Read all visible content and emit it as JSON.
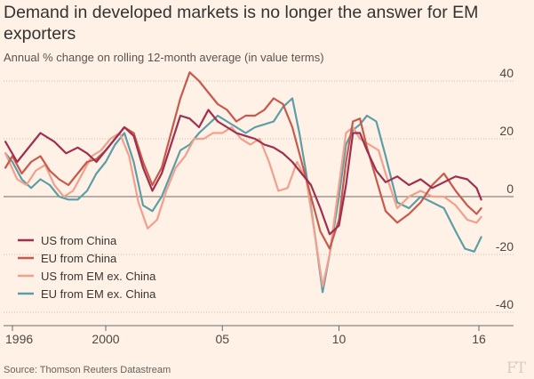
{
  "title": "Demand in developed markets is no longer the answer for EM exporters",
  "subtitle": "Annual % change on rolling 12-month average (in value terms)",
  "source": "Source: Thomson Reuters Datastream",
  "logo_text": "FT",
  "chart_data": {
    "type": "line",
    "ylim": [
      -40,
      40
    ],
    "xlim": [
      1995.6,
      2016.3
    ],
    "grid": true,
    "legend_position": "bottom-left",
    "y_ticks": [
      {
        "value": 40,
        "label": "40"
      },
      {
        "value": 20,
        "label": "20"
      },
      {
        "value": 0,
        "label": "0"
      },
      {
        "value": -20,
        "label": "-20"
      },
      {
        "value": -40,
        "label": "-40"
      }
    ],
    "x_ticks": [
      {
        "value": 1996,
        "label": "1996"
      },
      {
        "value": 2000,
        "label": "2000"
      },
      {
        "value": 2005,
        "label": "05"
      },
      {
        "value": 2010,
        "label": "10"
      },
      {
        "value": 2016,
        "label": "16"
      }
    ],
    "series": [
      {
        "name": "US from China",
        "color": "#9e2f50",
        "points": [
          [
            1995.7,
            19
          ],
          [
            1996.2,
            12
          ],
          [
            1996.8,
            18
          ],
          [
            1997.2,
            22
          ],
          [
            1997.8,
            19
          ],
          [
            1998.3,
            15
          ],
          [
            1998.8,
            17
          ],
          [
            1999.2,
            15
          ],
          [
            1999.6,
            12
          ],
          [
            2000.0,
            16
          ],
          [
            2000.4,
            20
          ],
          [
            2000.8,
            24
          ],
          [
            2001.2,
            21
          ],
          [
            2001.6,
            10
          ],
          [
            2002.0,
            2
          ],
          [
            2002.4,
            8
          ],
          [
            2002.8,
            18
          ],
          [
            2003.2,
            28
          ],
          [
            2003.6,
            27
          ],
          [
            2004.0,
            24
          ],
          [
            2004.4,
            30
          ],
          [
            2004.8,
            26
          ],
          [
            2005.2,
            24
          ],
          [
            2005.6,
            22
          ],
          [
            2006.0,
            21
          ],
          [
            2006.4,
            20
          ],
          [
            2006.8,
            18
          ],
          [
            2007.2,
            17
          ],
          [
            2007.6,
            15
          ],
          [
            2008.0,
            12
          ],
          [
            2008.4,
            8
          ],
          [
            2008.8,
            4
          ],
          [
            2009.2,
            -4
          ],
          [
            2009.6,
            -13
          ],
          [
            2010.0,
            -10
          ],
          [
            2010.3,
            4
          ],
          [
            2010.6,
            22
          ],
          [
            2010.9,
            22
          ],
          [
            2011.2,
            16
          ],
          [
            2011.6,
            9
          ],
          [
            2012.0,
            5
          ],
          [
            2012.5,
            7
          ],
          [
            2013.0,
            4
          ],
          [
            2013.5,
            6
          ],
          [
            2014.0,
            3
          ],
          [
            2014.5,
            5
          ],
          [
            2015.0,
            7
          ],
          [
            2015.5,
            6
          ],
          [
            2015.9,
            3
          ],
          [
            2016.1,
            -1
          ]
        ]
      },
      {
        "name": "EU from China",
        "color": "#c7594c",
        "points": [
          [
            1995.7,
            10
          ],
          [
            1996.0,
            14
          ],
          [
            1996.4,
            8
          ],
          [
            1996.8,
            12
          ],
          [
            1997.2,
            14
          ],
          [
            1997.6,
            9
          ],
          [
            1998.0,
            6
          ],
          [
            1998.4,
            4
          ],
          [
            1998.8,
            8
          ],
          [
            1999.2,
            12
          ],
          [
            1999.6,
            13
          ],
          [
            2000.0,
            16
          ],
          [
            2000.4,
            20
          ],
          [
            2000.8,
            24
          ],
          [
            2001.2,
            22
          ],
          [
            2001.6,
            12
          ],
          [
            2002.0,
            4
          ],
          [
            2002.4,
            10
          ],
          [
            2002.8,
            22
          ],
          [
            2003.2,
            34
          ],
          [
            2003.6,
            43
          ],
          [
            2004.0,
            40
          ],
          [
            2004.4,
            36
          ],
          [
            2004.8,
            32
          ],
          [
            2005.2,
            30
          ],
          [
            2005.6,
            26
          ],
          [
            2006.0,
            28
          ],
          [
            2006.4,
            28
          ],
          [
            2006.8,
            30
          ],
          [
            2007.2,
            34
          ],
          [
            2007.6,
            32
          ],
          [
            2008.0,
            24
          ],
          [
            2008.4,
            12
          ],
          [
            2008.8,
            0
          ],
          [
            2009.2,
            -12
          ],
          [
            2009.6,
            -18
          ],
          [
            2010.0,
            -8
          ],
          [
            2010.3,
            12
          ],
          [
            2010.6,
            26
          ],
          [
            2010.9,
            27
          ],
          [
            2011.2,
            17
          ],
          [
            2011.6,
            6
          ],
          [
            2012.0,
            -5
          ],
          [
            2012.5,
            -9
          ],
          [
            2013.0,
            -6
          ],
          [
            2013.5,
            -2
          ],
          [
            2014.0,
            4
          ],
          [
            2014.5,
            8
          ],
          [
            2015.0,
            2
          ],
          [
            2015.5,
            -3
          ],
          [
            2015.9,
            -6
          ],
          [
            2016.1,
            -4
          ]
        ]
      },
      {
        "name": "US from EM ex. China",
        "color": "#f2a08e",
        "points": [
          [
            1995.7,
            15
          ],
          [
            1996.2,
            6
          ],
          [
            1996.6,
            4
          ],
          [
            1997.0,
            9
          ],
          [
            1997.4,
            11
          ],
          [
            1997.8,
            4
          ],
          [
            1998.2,
            0
          ],
          [
            1998.6,
            2
          ],
          [
            1999.0,
            8
          ],
          [
            1999.4,
            14
          ],
          [
            1999.8,
            16
          ],
          [
            2000.2,
            20
          ],
          [
            2000.6,
            22
          ],
          [
            2001.0,
            14
          ],
          [
            2001.4,
            -2
          ],
          [
            2001.8,
            -11
          ],
          [
            2002.2,
            -8
          ],
          [
            2002.6,
            2
          ],
          [
            2003.0,
            10
          ],
          [
            2003.4,
            14
          ],
          [
            2003.8,
            20
          ],
          [
            2004.2,
            20
          ],
          [
            2004.6,
            22
          ],
          [
            2005.0,
            22
          ],
          [
            2005.4,
            24
          ],
          [
            2005.8,
            20
          ],
          [
            2006.2,
            18
          ],
          [
            2006.6,
            20
          ],
          [
            2007.0,
            12
          ],
          [
            2007.4,
            2
          ],
          [
            2007.8,
            3
          ],
          [
            2008.2,
            12
          ],
          [
            2008.6,
            6
          ],
          [
            2009.0,
            -15
          ],
          [
            2009.3,
            -31
          ],
          [
            2009.6,
            -20
          ],
          [
            2010.0,
            4
          ],
          [
            2010.3,
            22
          ],
          [
            2010.6,
            24
          ],
          [
            2010.9,
            20
          ],
          [
            2011.3,
            18
          ],
          [
            2011.7,
            16
          ],
          [
            2012.0,
            8
          ],
          [
            2012.5,
            -4
          ],
          [
            2013.0,
            0
          ],
          [
            2013.5,
            2
          ],
          [
            2014.0,
            0
          ],
          [
            2014.5,
            0
          ],
          [
            2015.0,
            -3
          ],
          [
            2015.5,
            -8
          ],
          [
            2015.9,
            -9
          ],
          [
            2016.1,
            -7
          ]
        ]
      },
      {
        "name": "EU from EM ex. China",
        "color": "#5b9ea7",
        "points": [
          [
            1995.7,
            15
          ],
          [
            1996.0,
            12
          ],
          [
            1996.4,
            6
          ],
          [
            1996.8,
            3
          ],
          [
            1997.2,
            6
          ],
          [
            1997.6,
            4
          ],
          [
            1998.0,
            0
          ],
          [
            1998.4,
            -1
          ],
          [
            1998.8,
            -1
          ],
          [
            1999.2,
            2
          ],
          [
            1999.6,
            8
          ],
          [
            2000.0,
            12
          ],
          [
            2000.4,
            18
          ],
          [
            2000.8,
            22
          ],
          [
            2001.2,
            12
          ],
          [
            2001.6,
            -3
          ],
          [
            2002.0,
            -5
          ],
          [
            2002.4,
            0
          ],
          [
            2002.8,
            8
          ],
          [
            2003.2,
            16
          ],
          [
            2003.6,
            18
          ],
          [
            2004.0,
            22
          ],
          [
            2004.4,
            25
          ],
          [
            2004.8,
            28
          ],
          [
            2005.2,
            26
          ],
          [
            2005.6,
            24
          ],
          [
            2006.0,
            22
          ],
          [
            2006.4,
            24
          ],
          [
            2006.8,
            25
          ],
          [
            2007.2,
            26
          ],
          [
            2007.6,
            31
          ],
          [
            2008.0,
            34
          ],
          [
            2008.3,
            22
          ],
          [
            2008.6,
            8
          ],
          [
            2009.0,
            -15
          ],
          [
            2009.3,
            -33
          ],
          [
            2009.6,
            -20
          ],
          [
            2010.0,
            0
          ],
          [
            2010.3,
            18
          ],
          [
            2010.6,
            23
          ],
          [
            2010.9,
            25
          ],
          [
            2011.2,
            28
          ],
          [
            2011.6,
            26
          ],
          [
            2012.0,
            14
          ],
          [
            2012.5,
            -2
          ],
          [
            2013.0,
            -4
          ],
          [
            2013.5,
            0
          ],
          [
            2014.0,
            -2
          ],
          [
            2014.5,
            -4
          ],
          [
            2015.0,
            -12
          ],
          [
            2015.4,
            -18
          ],
          [
            2015.8,
            -19
          ],
          [
            2016.1,
            -14
          ]
        ]
      }
    ]
  }
}
